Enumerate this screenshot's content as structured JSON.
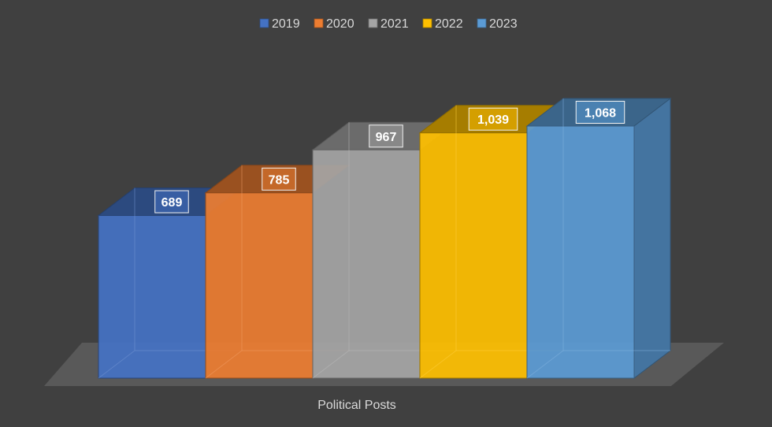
{
  "chart_data": {
    "type": "bar",
    "style": "3d-clustered-column",
    "categories": [
      "Political Posts"
    ],
    "series": [
      {
        "name": "2019",
        "values": [
          689
        ],
        "color": "#4472C4"
      },
      {
        "name": "2020",
        "values": [
          785
        ],
        "color": "#ED7D31"
      },
      {
        "name": "2021",
        "values": [
          967
        ],
        "color": "#A5A5A5"
      },
      {
        "name": "2022",
        "values": [
          1039
        ],
        "color": "#FFC000"
      },
      {
        "name": "2023",
        "values": [
          1068
        ],
        "color": "#5B9BD5"
      }
    ],
    "data_labels": [
      "689",
      "785",
      "967",
      "1,039",
      "1,068"
    ],
    "legend_position": "top",
    "grid": false,
    "background": "#404040"
  }
}
